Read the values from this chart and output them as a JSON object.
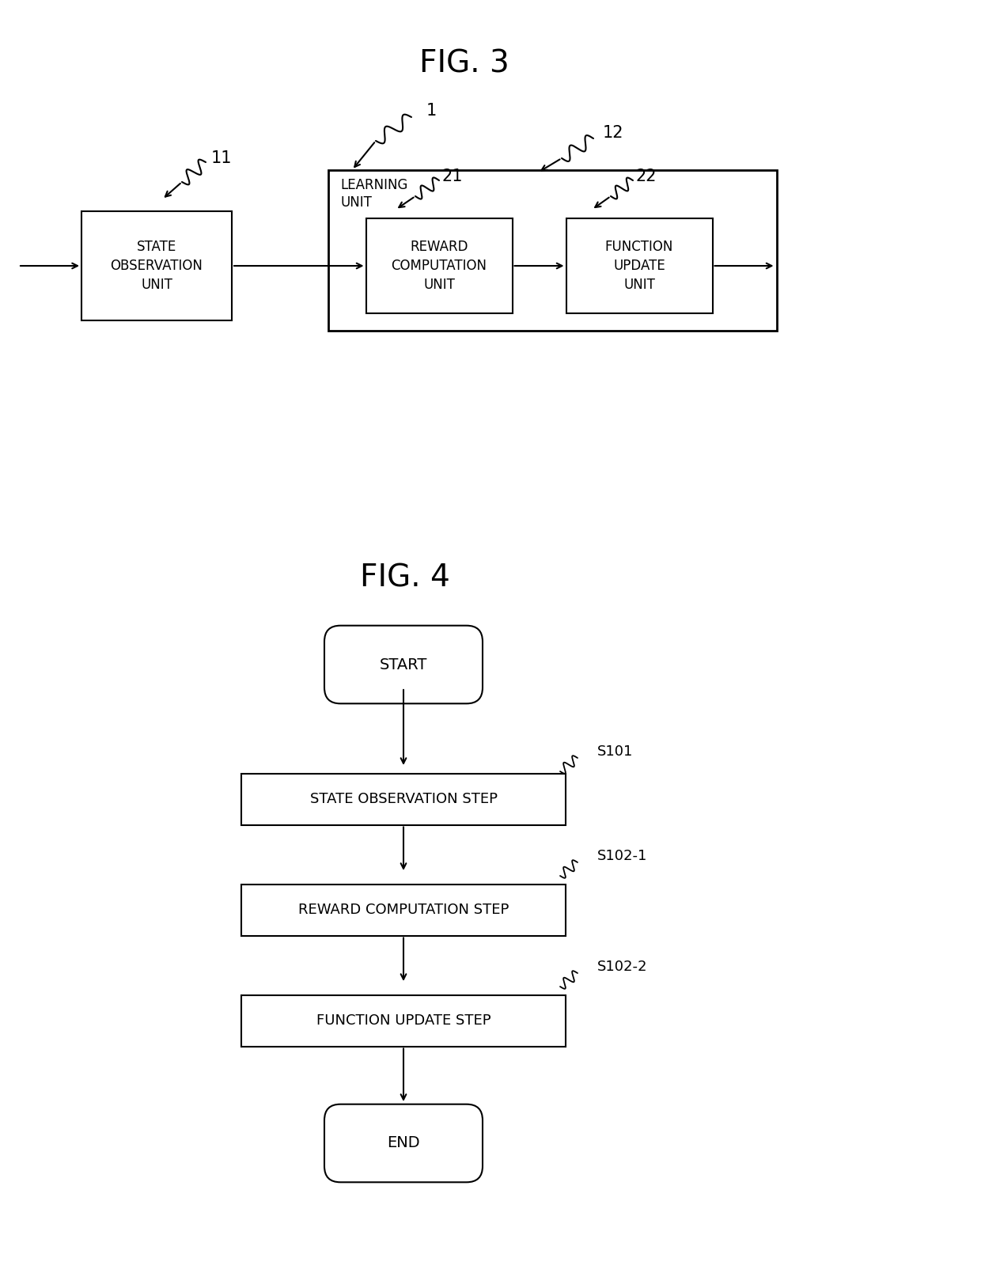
{
  "bg_color": "#ffffff",
  "line_color": "#000000",
  "text_color": "#000000",
  "fig3_title": "FIG. 3",
  "fig4_title": "FIG. 4",
  "fig3": {
    "label1": "1",
    "label11": "11",
    "label12": "12",
    "label21": "21",
    "label22": "22",
    "sou_label": "STATE\nOBSERVATION\nUNIT",
    "rcu_label": "REWARD\nCOMPUTATION\nUNIT",
    "fuu_label": "FUNCTION\nUPDATE\nUNIT",
    "lu_label": "LEARNING\nUNIT"
  },
  "fig4": {
    "start_label": "START",
    "state_label": "STATE OBSERVATION STEP",
    "reward_label": "REWARD COMPUTATION STEP",
    "func_label": "FUNCTION UPDATE STEP",
    "end_label": "END",
    "s101": "S101",
    "s102_1": "S102-1",
    "s102_2": "S102-2"
  }
}
